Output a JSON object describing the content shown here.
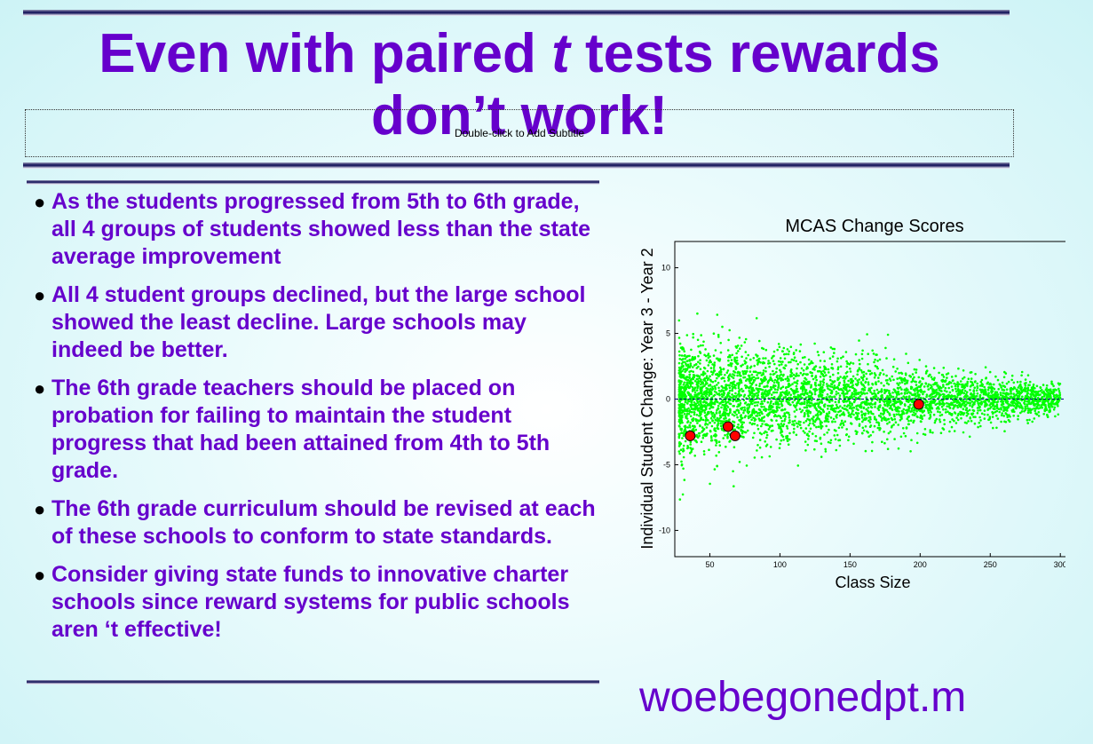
{
  "slide": {
    "title_pre": "Even with paired ",
    "title_em": "t",
    "title_post": " tests rewards don’t work!",
    "subtitle_placeholder": "Double-click to Add Subtitle",
    "footer": "woebegonedpt.m"
  },
  "bullets": [
    "As the students progressed from 5th to 6th grade, all 4 groups of students showed less than the state average improvement",
    "All 4 student groups declined, but the large school showed the least decline.  Large schools may indeed be better.",
    "The 6th grade teachers should be placed on probation for failing to maintain the student progress that had been attained from 4th to 5th grade.",
    "The 6th grade curriculum should be revised at each of these schools to conform to state standards.",
    "Consider giving state funds to innovative charter schools since reward systems for public schools aren ‘t effective!"
  ],
  "colors": {
    "title": "#6600cc",
    "bullet_text": "#6600cc",
    "scatter_points": "#00ff00",
    "highlight_points": "#ff0000",
    "reference_line": "#000080"
  },
  "chart_data": {
    "type": "scatter",
    "title": "MCAS Change Scores",
    "xlabel": "Class Size",
    "ylabel": "Individual Student Change: Year 3 - Year 2",
    "xlim": [
      25,
      310
    ],
    "ylim": [
      -12,
      12
    ],
    "xticks": [
      50,
      100,
      150,
      200,
      250,
      300
    ],
    "yticks": [
      -10,
      -5,
      0,
      5,
      10
    ],
    "reference_y": 0,
    "background_cloud": {
      "color": "green",
      "x_range": [
        28,
        300
      ],
      "mean": 0,
      "sd_at_small_class": 2.2,
      "sd_at_large_class": 0.55
    },
    "series": [
      {
        "points": [
          [
            36,
            -2.8
          ],
          [
            63,
            -2.1
          ],
          [
            68,
            -2.8
          ],
          [
            199,
            -0.4
          ]
        ]
      }
    ]
  }
}
